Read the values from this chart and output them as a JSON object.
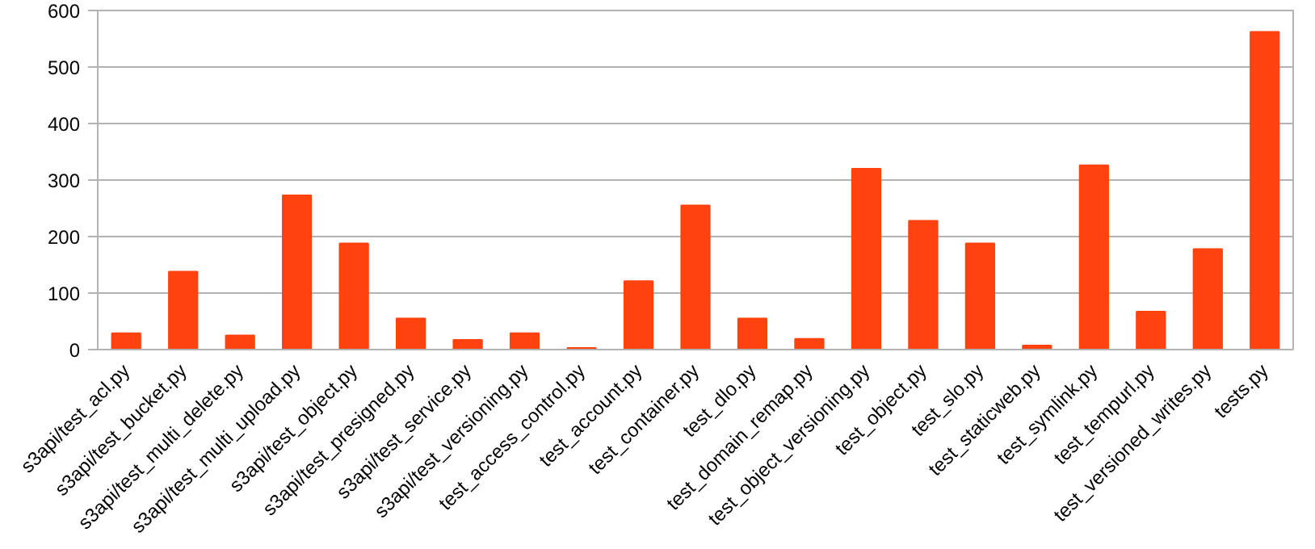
{
  "chart_data": {
    "type": "bar",
    "categories": [
      "s3api/test_acl.py",
      "s3api/test_bucket.py",
      "s3api/test_multi_delete.py",
      "s3api/test_multi_upload.py",
      "s3api/test_object.py",
      "s3api/test_presigned.py",
      "s3api/test_service.py",
      "s3api/test_versioning.py",
      "test_access_control.py",
      "test_account.py",
      "test_container.py",
      "test_dlo.py",
      "test_domain_remap.py",
      "test_object_versioning.py",
      "test_object.py",
      "test_slo.py",
      "test_staticweb.py",
      "test_symlink.py",
      "test_tempurl.py",
      "test_versioned_writes.py",
      "tests.py"
    ],
    "values": [
      29,
      138,
      25,
      273,
      188,
      55,
      17,
      29,
      3,
      121,
      255,
      55,
      19,
      320,
      228,
      188,
      7,
      326,
      67,
      178,
      562
    ],
    "color": "#ff420e",
    "ylim": [
      0,
      600
    ],
    "yticks": [
      0,
      100,
      200,
      300,
      400,
      500,
      600
    ],
    "grid": "y"
  }
}
